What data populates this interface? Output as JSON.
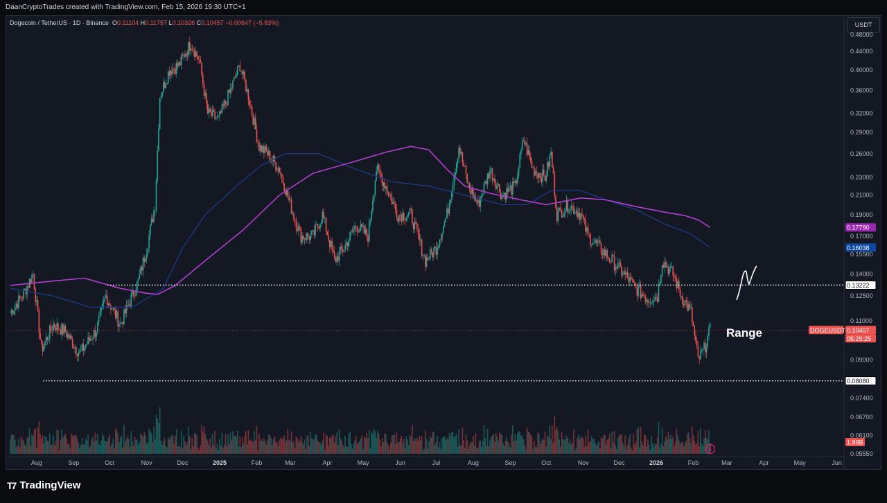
{
  "header": {
    "attribution": "DaanCryptoTrades created with TradingView.com, Feb 15, 2026 19:30 UTC+1"
  },
  "legend": {
    "symbol": "Dogecoin / TetherUS · 1D · Binance",
    "o_label": "O",
    "o_value": "0.11104",
    "h_label": "H",
    "h_value": "0.11757",
    "l_label": "L",
    "l_value": "0.10326",
    "c_label": "C",
    "c_value": "0.10457",
    "change": "−0.00647 (−5.83%)"
  },
  "currency_button": "USDT",
  "footer": {
    "brand": "TradingView"
  },
  "colors": {
    "up": "#26a69a",
    "down": "#ef5350",
    "ma_fast": "#1e3a8a",
    "ma_slow": "#b13fcf",
    "background": "#141823"
  },
  "chart_data": {
    "type": "candlestick",
    "symbol": "DOGEUSDT",
    "scale": "log",
    "ylim": [
      0.0555,
      0.49
    ],
    "y_ticks": [
      "0.48000",
      "0.44000",
      "0.40000",
      "0.36000",
      "0.32000",
      "0.29000",
      "0.26000",
      "0.23000",
      "0.21000",
      "0.19000",
      "0.17000",
      "0.15500",
      "0.14000",
      "0.12500",
      "0.11000",
      "0.09000",
      "0.07400",
      "0.06700",
      "0.06100",
      "0.05550"
    ],
    "x_ticks": [
      "Aug",
      "Sep",
      "Oct",
      "Nov",
      "Dec",
      "2025",
      "Feb",
      "Mar",
      "Apr",
      "May",
      "Jun",
      "Jul",
      "Aug",
      "Sep",
      "Oct",
      "Nov",
      "Dec",
      "2026",
      "Feb",
      "Mar",
      "Apr",
      "May",
      "Jun"
    ],
    "price_path": [
      [
        "2024-07-10",
        0.115
      ],
      [
        "2024-07-20",
        0.125
      ],
      [
        "2024-07-29",
        0.14
      ],
      [
        "2024-08-05",
        0.095
      ],
      [
        "2024-08-15",
        0.108
      ],
      [
        "2024-08-25",
        0.104
      ],
      [
        "2024-09-06",
        0.093
      ],
      [
        "2024-09-20",
        0.105
      ],
      [
        "2024-09-28",
        0.125
      ],
      [
        "2024-10-10",
        0.108
      ],
      [
        "2024-10-25",
        0.135
      ],
      [
        "2024-11-01",
        0.16
      ],
      [
        "2024-11-08",
        0.2
      ],
      [
        "2024-11-12",
        0.35
      ],
      [
        "2024-11-20",
        0.4
      ],
      [
        "2024-11-28",
        0.41
      ],
      [
        "2024-12-08",
        0.46
      ],
      [
        "2024-12-15",
        0.42
      ],
      [
        "2024-12-22",
        0.32
      ],
      [
        "2024-12-31",
        0.31
      ],
      [
        "2025-01-10",
        0.36
      ],
      [
        "2025-01-18",
        0.41
      ],
      [
        "2025-01-25",
        0.35
      ],
      [
        "2025-02-03",
        0.27
      ],
      [
        "2025-02-10",
        0.26
      ],
      [
        "2025-02-20",
        0.24
      ],
      [
        "2025-03-01",
        0.2
      ],
      [
        "2025-03-10",
        0.17
      ],
      [
        "2025-03-20",
        0.17
      ],
      [
        "2025-03-28",
        0.19
      ],
      [
        "2025-04-07",
        0.15
      ],
      [
        "2025-04-15",
        0.16
      ],
      [
        "2025-04-25",
        0.18
      ],
      [
        "2025-05-05",
        0.17
      ],
      [
        "2025-05-12",
        0.24
      ],
      [
        "2025-05-20",
        0.22
      ],
      [
        "2025-05-30",
        0.19
      ],
      [
        "2025-06-10",
        0.19
      ],
      [
        "2025-06-22",
        0.15
      ],
      [
        "2025-07-01",
        0.16
      ],
      [
        "2025-07-10",
        0.19
      ],
      [
        "2025-07-20",
        0.27
      ],
      [
        "2025-07-28",
        0.22
      ],
      [
        "2025-08-05",
        0.2
      ],
      [
        "2025-08-15",
        0.24
      ],
      [
        "2025-08-25",
        0.21
      ],
      [
        "2025-09-05",
        0.22
      ],
      [
        "2025-09-12",
        0.28
      ],
      [
        "2025-09-20",
        0.24
      ],
      [
        "2025-09-30",
        0.23
      ],
      [
        "2025-10-05",
        0.26
      ],
      [
        "2025-10-10",
        0.19
      ],
      [
        "2025-10-20",
        0.2
      ],
      [
        "2025-10-30",
        0.19
      ],
      [
        "2025-11-05",
        0.17
      ],
      [
        "2025-11-15",
        0.16
      ],
      [
        "2025-11-25",
        0.15
      ],
      [
        "2025-12-05",
        0.14
      ],
      [
        "2025-12-15",
        0.13
      ],
      [
        "2025-12-25",
        0.123
      ],
      [
        "2026-01-02",
        0.125
      ],
      [
        "2026-01-06",
        0.15
      ],
      [
        "2026-01-15",
        0.14
      ],
      [
        "2026-01-22",
        0.125
      ],
      [
        "2026-01-30",
        0.115
      ],
      [
        "2026-02-05",
        0.09
      ],
      [
        "2026-02-10",
        0.095
      ],
      [
        "2026-02-15",
        0.105
      ]
    ],
    "ma_fast_name": "",
    "ma_fast_last": 0.16038,
    "ma_fast_path": [
      [
        "2024-07-10",
        0.13
      ],
      [
        "2024-08-15",
        0.125
      ],
      [
        "2024-09-15",
        0.118
      ],
      [
        "2024-10-20",
        0.118
      ],
      [
        "2024-11-15",
        0.13
      ],
      [
        "2024-12-01",
        0.16
      ],
      [
        "2024-12-20",
        0.19
      ],
      [
        "2025-01-15",
        0.22
      ],
      [
        "2025-02-05",
        0.245
      ],
      [
        "2025-02-25",
        0.26
      ],
      [
        "2025-03-25",
        0.26
      ],
      [
        "2025-04-25",
        0.24
      ],
      [
        "2025-05-25",
        0.225
      ],
      [
        "2025-06-25",
        0.22
      ],
      [
        "2025-07-25",
        0.21
      ],
      [
        "2025-08-25",
        0.2
      ],
      [
        "2025-09-15",
        0.2
      ],
      [
        "2025-10-05",
        0.215
      ],
      [
        "2025-10-30",
        0.215
      ],
      [
        "2025-11-20",
        0.205
      ],
      [
        "2025-12-15",
        0.195
      ],
      [
        "2026-01-10",
        0.18
      ],
      [
        "2026-01-30",
        0.172
      ],
      [
        "2026-02-15",
        0.16038
      ]
    ],
    "ma_slow_name": "",
    "ma_slow_last": 0.1779,
    "ma_slow_path": [
      [
        "2024-07-10",
        0.132
      ],
      [
        "2024-08-15",
        0.135
      ],
      [
        "2024-09-10",
        0.137
      ],
      [
        "2024-10-10",
        0.13
      ],
      [
        "2024-10-30",
        0.127
      ],
      [
        "2024-11-10",
        0.126
      ],
      [
        "2024-11-25",
        0.132
      ],
      [
        "2024-12-20",
        0.15
      ],
      [
        "2025-01-20",
        0.175
      ],
      [
        "2025-02-20",
        0.21
      ],
      [
        "2025-03-20",
        0.235
      ],
      [
        "2025-04-20",
        0.248
      ],
      [
        "2025-05-20",
        0.262
      ],
      [
        "2025-06-10",
        0.27
      ],
      [
        "2025-06-25",
        0.265
      ],
      [
        "2025-07-10",
        0.24
      ],
      [
        "2025-07-25",
        0.22
      ],
      [
        "2025-08-15",
        0.212
      ],
      [
        "2025-09-10",
        0.205
      ],
      [
        "2025-10-01",
        0.2
      ],
      [
        "2025-10-30",
        0.207
      ],
      [
        "2025-11-20",
        0.205
      ],
      [
        "2025-12-15",
        0.198
      ],
      [
        "2026-01-10",
        0.192
      ],
      [
        "2026-01-25",
        0.189
      ],
      [
        "2026-02-05",
        0.185
      ],
      [
        "2026-02-15",
        0.1779
      ]
    ],
    "volume_last": "1.99B",
    "range": {
      "label": "Range",
      "high": 0.13222,
      "low": 0.0808
    },
    "price_labels": {
      "ma_slow": "0.17790",
      "ma_fast": "0.16038",
      "range_high": "0.13222",
      "current_symbol": "DOGEUSDT",
      "current_price": "0.10457",
      "countdown": "05:29:25",
      "range_low": "0.08080",
      "volume": "1.99B"
    },
    "current_price": 0.10457,
    "grid": false
  }
}
